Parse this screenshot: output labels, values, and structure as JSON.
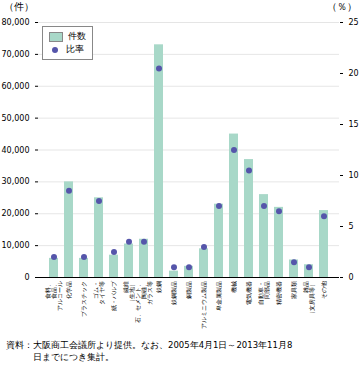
{
  "chart_data": {
    "type": "bar",
    "categories": [
      "食料、\n食品、\nアルコール",
      "化学品",
      "プラスチック",
      "ゴム・\nタイヤ等",
      "紙・パルプ",
      "繊維\n（生地）",
      "石、セメント、\n陶磁、\nガラス等",
      "鉄鋼",
      "鉄鋼製品",
      "銅製品",
      "アルミニウム製品",
      "卑金属製品",
      "機械",
      "電気機器",
      "自動車・\n同部品",
      "精密機器",
      "家具類",
      "雑品\n（文房具等）",
      "その他"
    ],
    "series": [
      {
        "name": "件数",
        "type": "bar",
        "color": "#a8d8c8",
        "values": [
          6000,
          30000,
          6000,
          25000,
          7000,
          10500,
          12000,
          73000,
          2000,
          3500,
          9000,
          23000,
          45000,
          37000,
          26000,
          22000,
          5500,
          4000,
          21000
        ]
      },
      {
        "name": "比率",
        "type": "scatter",
        "axis": "y2",
        "color": "#5555aa",
        "values": [
          2.0,
          8.5,
          2.0,
          7.5,
          2.5,
          3.5,
          3.5,
          20.5,
          1.0,
          1.0,
          3.0,
          7.0,
          12.5,
          10.5,
          7.0,
          6.5,
          1.5,
          1.0,
          6.0
        ]
      }
    ],
    "ylabel": "（件）",
    "y2label": "（％）",
    "ylim": [
      0,
      80000
    ],
    "yticks": [
      0,
      {
        "value": 10000,
        "label": "10,000"
      },
      {
        "value": 20000,
        "label": "20,000"
      },
      {
        "value": 30000,
        "label": "30,000"
      },
      {
        "value": 40000,
        "label": "40,000"
      },
      {
        "value": 50000,
        "label": "50,000"
      },
      {
        "value": 60000,
        "label": "60,000"
      },
      {
        "value": 70000,
        "label": "70,000"
      },
      {
        "value": 80000,
        "label": "80,000"
      }
    ],
    "y2lim": [
      0,
      25
    ],
    "y2ticks": [
      0,
      5,
      10,
      15,
      20,
      25
    ],
    "grid": true,
    "legend": "upper left",
    "annotations": [
      "資料：大阪商工会議所より提供。なお、2005年4月1日～2013年11月8",
      "　　　日までにつき集計。"
    ]
  }
}
